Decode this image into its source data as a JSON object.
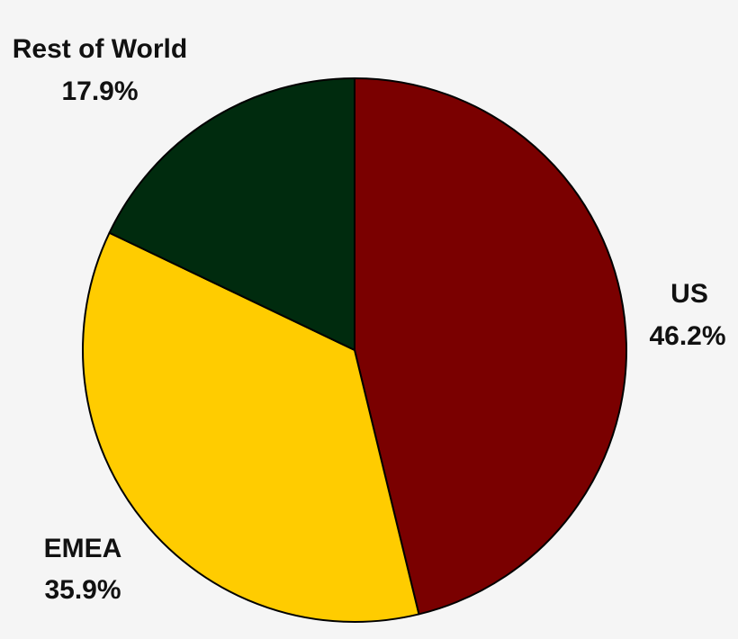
{
  "chart_data": {
    "type": "pie",
    "title": "",
    "start_angle_deg": 0,
    "direction": "clockwise",
    "legend": "none",
    "slices": [
      {
        "label": "US",
        "value": 46.2,
        "value_label": "46.2%",
        "color": "#7a0000"
      },
      {
        "label": "EMEA",
        "value": 35.9,
        "value_label": "35.9%",
        "color": "#ffcc00"
      },
      {
        "label": "Rest of World",
        "value": 17.9,
        "value_label": "17.9%",
        "color": "#002b0e"
      }
    ]
  }
}
